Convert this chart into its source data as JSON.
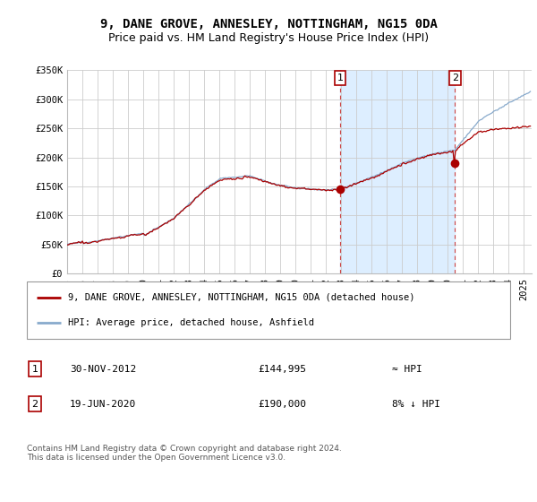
{
  "title": "9, DANE GROVE, ANNESLEY, NOTTINGHAM, NG15 0DA",
  "subtitle": "Price paid vs. HM Land Registry's House Price Index (HPI)",
  "ylim": [
    0,
    350000
  ],
  "yticks": [
    0,
    50000,
    100000,
    150000,
    200000,
    250000,
    300000,
    350000
  ],
  "ytick_labels": [
    "£0",
    "£50K",
    "£100K",
    "£150K",
    "£200K",
    "£250K",
    "£300K",
    "£350K"
  ],
  "xlim_start": 1995.0,
  "xlim_end": 2025.5,
  "sale1_date": 2012.917,
  "sale1_price": 144995,
  "sale1_label": "1",
  "sale1_text": "30-NOV-2012",
  "sale1_price_text": "£144,995",
  "sale1_rel": "≈ HPI",
  "sale2_date": 2020.458,
  "sale2_price": 190000,
  "sale2_label": "2",
  "sale2_text": "19-JUN-2020",
  "sale2_price_text": "£190,000",
  "sale2_rel": "8% ↓ HPI",
  "red_line_color": "#aa0000",
  "blue_line_color": "#88aacc",
  "shade_color": "#ddeeff",
  "background_color": "#ffffff",
  "grid_color": "#cccccc",
  "title_fontsize": 10,
  "subtitle_fontsize": 9,
  "tick_fontsize": 7.5,
  "legend_label_red": "9, DANE GROVE, ANNESLEY, NOTTINGHAM, NG15 0DA (detached house)",
  "legend_label_blue": "HPI: Average price, detached house, Ashfield",
  "footer": "Contains HM Land Registry data © Crown copyright and database right 2024.\nThis data is licensed under the Open Government Licence v3.0."
}
